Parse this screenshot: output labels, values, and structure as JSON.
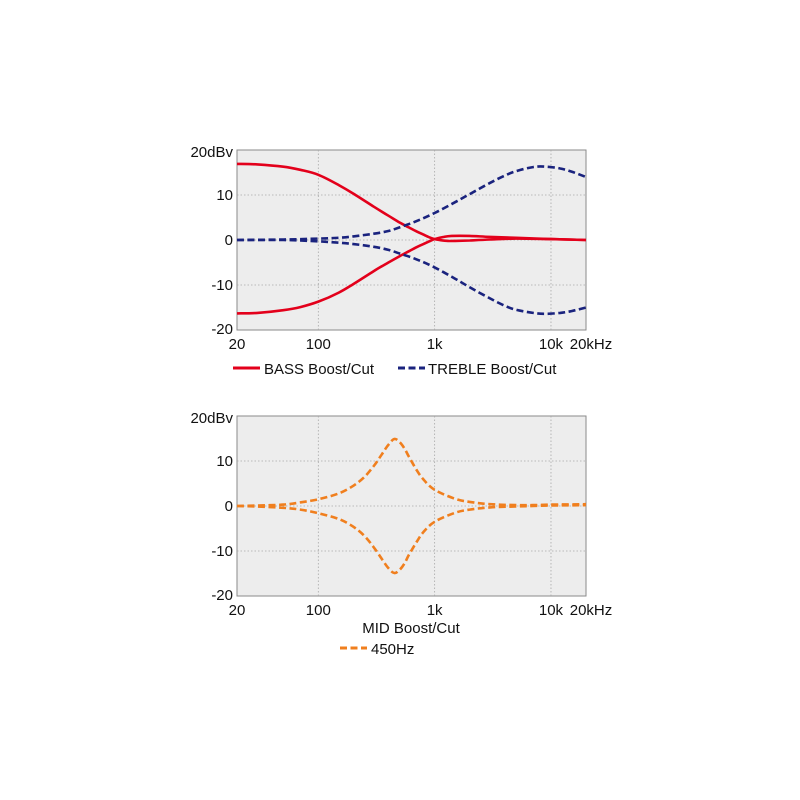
{
  "chart_data": [
    {
      "type": "line",
      "x_scale": "log",
      "xlim": [
        20,
        20000
      ],
      "ylim": [
        -20,
        20
      ],
      "grid": true,
      "legend_position": "bottom",
      "x_ticks": [
        {
          "value": 20,
          "label": "20"
        },
        {
          "value": 100,
          "label": "100"
        },
        {
          "value": 1000,
          "label": "1k"
        },
        {
          "value": 10000,
          "label": "10k"
        },
        {
          "value": 20000,
          "label": "20kHz"
        }
      ],
      "y_ticks": [
        {
          "value": 20,
          "label": "20dBv"
        },
        {
          "value": 10,
          "label": "10"
        },
        {
          "value": 0,
          "label": "0"
        },
        {
          "value": -10,
          "label": "-10"
        },
        {
          "value": -20,
          "label": "-20"
        }
      ],
      "series": [
        {
          "name": "BASS Boost/Cut",
          "color": "#e3001b",
          "style": "solid",
          "curves": [
            {
              "x": [
                20,
                30,
                50,
                70,
                100,
                150,
                200,
                300,
                400,
                500,
                600,
                700,
                800,
                900,
                1000,
                1100,
                1300,
                1500,
                2000,
                3000,
                5000,
                10000,
                20000
              ],
              "y": [
                16.9,
                16.8,
                16.3,
                15.6,
                14.5,
                12.2,
                10.3,
                7.4,
                5.4,
                3.9,
                2.8,
                1.9,
                1.2,
                0.6,
                0.2,
                0.0,
                -0.2,
                -0.2,
                -0.1,
                0.1,
                0.3,
                0.2,
                0.0
              ]
            },
            {
              "x": [
                20,
                30,
                50,
                70,
                100,
                150,
                200,
                300,
                400,
                500,
                600,
                700,
                800,
                900,
                1000,
                1200,
                1400,
                2000,
                3000,
                5000,
                10000,
                20000
              ],
              "y": [
                -16.3,
                -16.2,
                -15.6,
                -14.9,
                -13.7,
                -11.7,
                -9.8,
                -6.9,
                -5.0,
                -3.6,
                -2.5,
                -1.6,
                -0.9,
                -0.3,
                0.2,
                0.7,
                0.9,
                0.9,
                0.7,
                0.5,
                0.2,
                0.0
              ]
            }
          ]
        },
        {
          "name": "TREBLE Boost/Cut",
          "color": "#1a237e",
          "style": "dashed",
          "curves": [
            {
              "x": [
                20,
                50,
                100,
                150,
                200,
                300,
                400,
                500,
                700,
                1000,
                1500,
                2000,
                3000,
                4000,
                5000,
                7000,
                9000,
                12000,
                15000,
                20000
              ],
              "y": [
                0.0,
                0.1,
                0.3,
                0.5,
                0.8,
                1.4,
                2.0,
                2.8,
                4.2,
                6.0,
                8.4,
                10.2,
                12.7,
                14.3,
                15.3,
                16.2,
                16.3,
                15.9,
                15.2,
                14.0
              ]
            },
            {
              "x": [
                20,
                50,
                100,
                150,
                200,
                300,
                400,
                500,
                700,
                1000,
                1500,
                2000,
                3000,
                4000,
                5000,
                7000,
                9000,
                12000,
                15000,
                20000
              ],
              "y": [
                0.0,
                0.0,
                -0.3,
                -0.6,
                -0.9,
                -1.5,
                -2.2,
                -3.0,
                -4.3,
                -6.1,
                -8.6,
                -10.5,
                -13.0,
                -14.6,
                -15.5,
                -16.2,
                -16.4,
                -16.2,
                -15.8,
                -15.0
              ]
            }
          ]
        }
      ]
    },
    {
      "type": "line",
      "x_scale": "log",
      "xlim": [
        20,
        20000
      ],
      "ylim": [
        -20,
        20
      ],
      "grid": true,
      "legend_position": "bottom",
      "title": "MID Boost/Cut",
      "x_ticks": [
        {
          "value": 20,
          "label": "20"
        },
        {
          "value": 100,
          "label": "100"
        },
        {
          "value": 1000,
          "label": "1k"
        },
        {
          "value": 10000,
          "label": "10k"
        },
        {
          "value": 20000,
          "label": "20kHz"
        }
      ],
      "y_ticks": [
        {
          "value": 20,
          "label": "20dBv"
        },
        {
          "value": 10,
          "label": "10"
        },
        {
          "value": 0,
          "label": "0"
        },
        {
          "value": -10,
          "label": "-10"
        },
        {
          "value": -20,
          "label": "-20"
        }
      ],
      "series": [
        {
          "name": "450Hz",
          "color": "#f07f1e",
          "style": "dashed",
          "curves": [
            {
              "x": [
                20,
                30,
                50,
                70,
                100,
                150,
                200,
                250,
                300,
                350,
                400,
                450,
                500,
                550,
                600,
                700,
                800,
                1000,
                1500,
                2000,
                3000,
                5000,
                7000,
                10000,
                20000
              ],
              "y": [
                0.0,
                0.1,
                0.3,
                0.8,
                1.5,
                2.8,
                4.5,
                6.5,
                8.9,
                11.4,
                13.6,
                14.9,
                14.2,
                12.8,
                11.0,
                8.0,
                5.9,
                3.6,
                1.6,
                0.9,
                0.4,
                0.2,
                0.2,
                0.3,
                0.4
              ]
            },
            {
              "x": [
                20,
                30,
                50,
                70,
                100,
                150,
                200,
                250,
                300,
                350,
                400,
                450,
                500,
                550,
                600,
                700,
                800,
                1000,
                1500,
                2000,
                3000,
                5000,
                7000,
                10000,
                20000
              ],
              "y": [
                0.0,
                -0.1,
                -0.4,
                -0.8,
                -1.6,
                -2.9,
                -4.6,
                -6.7,
                -9.2,
                -11.7,
                -13.8,
                -14.9,
                -14.2,
                -12.8,
                -10.9,
                -8.0,
                -5.8,
                -3.5,
                -1.5,
                -0.8,
                -0.3,
                -0.1,
                0.0,
                0.1,
                0.2
              ]
            }
          ]
        }
      ]
    }
  ]
}
